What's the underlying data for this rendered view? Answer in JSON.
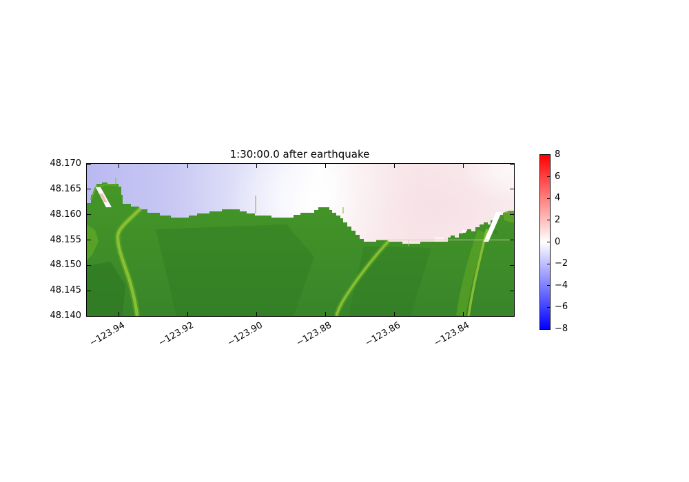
{
  "figure": {
    "title": "1:30:00.0 after earthquake",
    "background": "#ffffff"
  },
  "chart_data": {
    "type": "heatmap",
    "title": "1:30:00.0 after earthquake",
    "subtitle": "",
    "description": "Map of simulated tsunami water-surface elevation (meters) 1:30:00.0 after earthquake; green shading is land topography, blue-white-red shading is sea-surface elevation.",
    "x_axis": {
      "label": "",
      "tick_labels": [
        "−123.94",
        "−123.92",
        "−123.90",
        "−123.88",
        "−123.86",
        "−123.84"
      ],
      "tick_values": [
        -123.94,
        -123.92,
        -123.9,
        -123.88,
        -123.86,
        -123.84
      ],
      "range": [
        -123.9493,
        -123.8253
      ],
      "tick_rotation_deg": 30
    },
    "y_axis": {
      "label": "",
      "tick_labels": [
        "48.170",
        "48.165",
        "48.160",
        "48.155",
        "48.150",
        "48.145",
        "48.140"
      ],
      "tick_values": [
        48.17,
        48.165,
        48.16,
        48.155,
        48.15,
        48.145,
        48.14
      ],
      "range": [
        48.14,
        48.17
      ]
    },
    "colorbar": {
      "tick_labels": [
        "8",
        "6",
        "4",
        "2",
        "0",
        "−2",
        "−4",
        "−6",
        "−8"
      ],
      "tick_values": [
        8,
        6,
        4,
        2,
        0,
        -2,
        -4,
        -6,
        -8
      ],
      "range": [
        -8,
        8
      ],
      "colormap": "bwr (blue-white-red)"
    },
    "regions": [
      {
        "name": "west offshore water",
        "approx_value_m": -2.0,
        "appearance": "light lavender-blue"
      },
      {
        "name": "central offshore water",
        "approx_value_m": -0.3,
        "appearance": "near white"
      },
      {
        "name": "east offshore water / bay",
        "approx_value_m": 0.7,
        "appearance": "pale pink"
      },
      {
        "name": "land",
        "approx_value_m": null,
        "appearance": "green topography with light-green river valleys"
      }
    ],
    "grid": false,
    "legend": false,
    "colors": {
      "water_west": "#b9b9f1",
      "water_west2": "#c8c8f4",
      "water_mid": "#e9e9fa",
      "water_bright": "#fdfdff",
      "water_pink_light": "#faeff1",
      "water_east_pink": "#f8e7ea",
      "water_east_corner": "#fbf1f2",
      "water_pink_deep": "#f6e0e5",
      "land_top": "#459727",
      "land": "#38852a",
      "land_light": "#8fc334",
      "land_mid_light": "#60a825",
      "land_dark": "#2b7520",
      "channel_white": "#ffffff",
      "river_pink": "#f2c0b8",
      "sand_line": "#dbc9a4",
      "colorbar_top": "#ff0000",
      "colorbar_mid": "#ffffff",
      "colorbar_bottom": "#0000ff",
      "axis": "#000000"
    }
  }
}
